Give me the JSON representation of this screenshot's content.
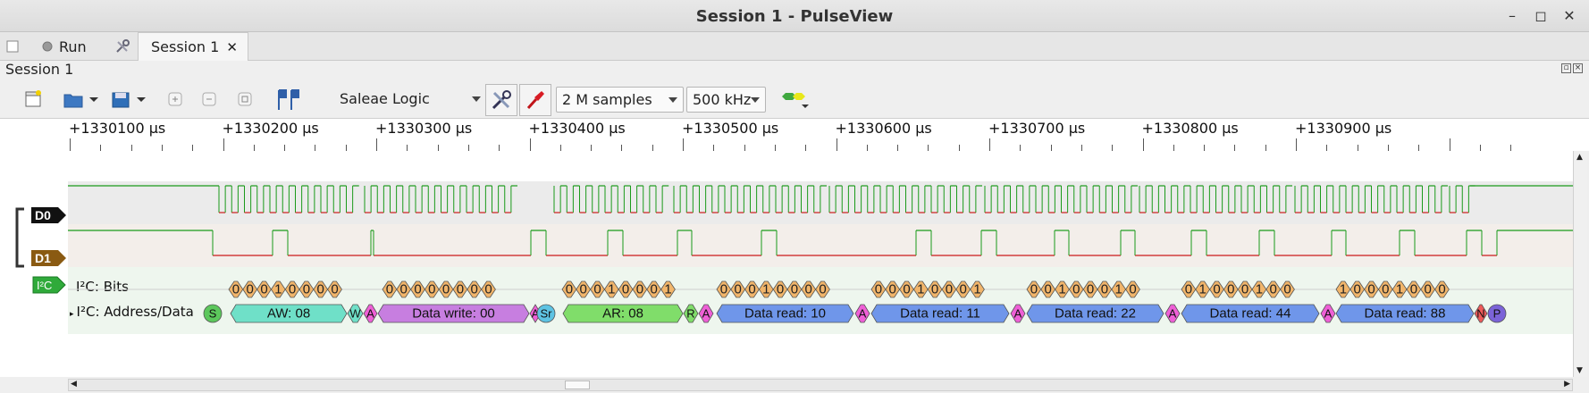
{
  "window": {
    "title": "Session 1 - PulseView"
  },
  "tabs": {
    "run_label": "Run",
    "session_tab_label": "Session 1"
  },
  "session": {
    "label": "Session 1"
  },
  "toolbar": {
    "device": "Saleae Logic",
    "samples": "2 M samples",
    "rate": "500 kHz"
  },
  "ruler": {
    "labels": [
      "+1330100 µs",
      "+1330200 µs",
      "+1330300 µs",
      "+1330400 µs",
      "+1330500 µs",
      "+1330600 µs",
      "+1330700 µs",
      "+1330800 µs",
      "+1330900 µs"
    ]
  },
  "channels": {
    "d0": {
      "name": "D0",
      "color": "#111111"
    },
    "d1": {
      "name": "D1",
      "color": "#8a5a12"
    },
    "decoder": {
      "badge": "I²C",
      "bits_row": "I²C: Bits",
      "addr_row": "I²C: Address/Data",
      "color": "#2faa3a"
    }
  },
  "colors": {
    "high": "#1a9a1a",
    "low": "#cc1a1a",
    "bit": "#f1b56b",
    "start": "#5cc75c",
    "aw": "#6fe0c8",
    "ack": "#ee5fd6",
    "dwrite": "#c77ee0",
    "sr": "#5ec3e3",
    "ar": "#80dd6a",
    "dread": "#6f96ea",
    "nack": "#ee5a5a",
    "stop": "#7b63d8"
  },
  "i2c": {
    "bit_groups": [
      "00010000",
      "00000000",
      "00010001",
      "00010000",
      "00010001",
      "00100010",
      "01000100",
      "10001000"
    ],
    "annotations": [
      {
        "text": "S",
        "kind": "start"
      },
      {
        "text": "AW: 08",
        "kind": "aw"
      },
      {
        "text": "W",
        "kind": "aw"
      },
      {
        "text": "A",
        "kind": "ack"
      },
      {
        "text": "Data write: 00",
        "kind": "dwrite"
      },
      {
        "text": "A",
        "kind": "ack"
      },
      {
        "text": "Sr",
        "kind": "sr"
      },
      {
        "text": "AR: 08",
        "kind": "ar"
      },
      {
        "text": "R",
        "kind": "ar"
      },
      {
        "text": "A",
        "kind": "ack"
      },
      {
        "text": "Data read: 10",
        "kind": "dread"
      },
      {
        "text": "A",
        "kind": "ack"
      },
      {
        "text": "Data read: 11",
        "kind": "dread"
      },
      {
        "text": "A",
        "kind": "ack"
      },
      {
        "text": "Data read: 22",
        "kind": "dread"
      },
      {
        "text": "A",
        "kind": "ack"
      },
      {
        "text": "Data read: 44",
        "kind": "dread"
      },
      {
        "text": "A",
        "kind": "ack"
      },
      {
        "text": "Data read: 88",
        "kind": "dread"
      },
      {
        "text": "N",
        "kind": "nack"
      },
      {
        "text": "P",
        "kind": "stop"
      }
    ]
  }
}
